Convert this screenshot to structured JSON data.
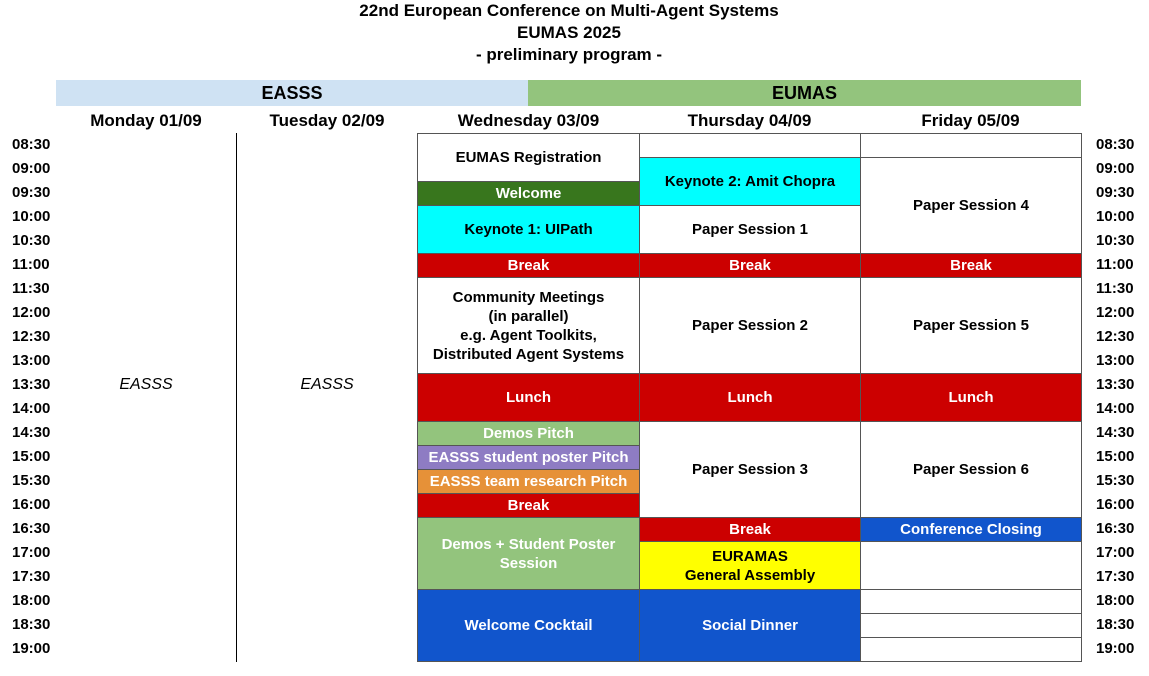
{
  "header": {
    "line1": "22nd European Conference on Multi-Agent Systems",
    "line2": "EUMAS 2025",
    "line3": "- preliminary program -"
  },
  "bands": {
    "easss": "EASSS",
    "eumas": "EUMAS"
  },
  "colors": {
    "easss_band": "#cfe2f3",
    "eumas_band": "#93c47d",
    "break_red": "#cc0000",
    "welcome_green": "#38761d",
    "keynote_cyan": "#00ffff",
    "demos_green": "#93c47d",
    "poster_purple": "#8e7cc3",
    "team_orange": "#e69138",
    "social_blue": "#1155cc",
    "assembly_yellow": "#ffff00"
  },
  "days": {
    "mon": "Monday 01/09",
    "tue": "Tuesday 02/09",
    "wed": "Wednesday 03/09",
    "thu": "Thursday 04/09",
    "fri": "Friday 05/09"
  },
  "times": [
    "08:30",
    "09:00",
    "09:30",
    "10:00",
    "10:30",
    "11:00",
    "11:30",
    "12:00",
    "12:30",
    "13:00",
    "13:30",
    "14:00",
    "14:30",
    "15:00",
    "15:30",
    "16:00",
    "16:30",
    "17:00",
    "17:30",
    "18:00",
    "18:30",
    "19:00"
  ],
  "easss_labels": {
    "mon": "EASSS",
    "tue": "EASSS"
  },
  "wed": {
    "registration": "EUMAS Registration",
    "welcome": "Welcome",
    "keynote1": "Keynote 1: UIPath",
    "break1": "Break",
    "community": [
      "Community Meetings",
      "(in parallel)",
      "e.g. Agent Toolkits,",
      "Distributed Agent Systems"
    ],
    "lunch": "Lunch",
    "demos_pitch": "Demos Pitch",
    "poster_pitch": "EASSS student poster Pitch",
    "team_pitch": "EASSS team research Pitch",
    "break2": "Break",
    "demos_poster": [
      "Demos + Student Poster",
      "Session"
    ],
    "cocktail": "Welcome Cocktail"
  },
  "thu": {
    "keynote2": "Keynote 2: Amit Chopra",
    "paper1": "Paper Session 1",
    "break1": "Break",
    "paper2": "Paper Session 2",
    "lunch": "Lunch",
    "paper3": "Paper Session 3",
    "break2": "Break",
    "assembly": [
      "EURAMAS",
      "General Assembly"
    ],
    "dinner": "Social Dinner"
  },
  "fri": {
    "paper4": "Paper Session 4",
    "break1": "Break",
    "paper5": "Paper Session 5",
    "lunch": "Lunch",
    "paper6": "Paper Session 6",
    "closing": "Conference Closing"
  }
}
